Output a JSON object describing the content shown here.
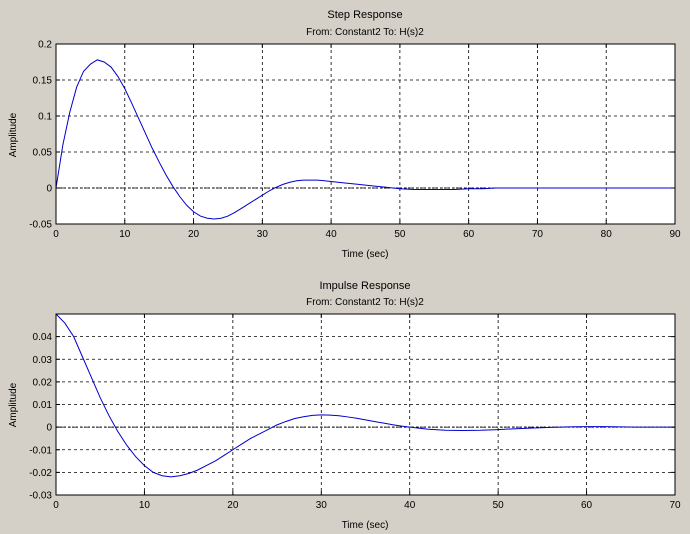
{
  "colors": {
    "background": "#d4d0c8",
    "plot_area": "#ffffff",
    "line": "#0000cc",
    "grid": "#000000",
    "zero_line": "#000000"
  },
  "chart_data": [
    {
      "type": "line",
      "title": "Step Response",
      "subtitle": "From: Constant2  To: H(s)2",
      "xlabel": "Time (sec)",
      "ylabel": "Amplitude",
      "xlim": [
        0,
        90
      ],
      "ylim": [
        -0.05,
        0.2
      ],
      "xticks": [
        0,
        10,
        20,
        30,
        40,
        50,
        60,
        70,
        80,
        90
      ],
      "xtick_labels": [
        "0",
        "10",
        "20",
        "30",
        "40",
        "50",
        "60",
        "70",
        "80",
        "90"
      ],
      "yticks": [
        -0.05,
        0,
        0.05,
        0.1,
        0.15,
        0.2
      ],
      "ytick_labels": [
        "-0.05",
        "0",
        "0.05",
        "0.1",
        "0.15",
        "0.2"
      ],
      "grid": true,
      "zero_line": true,
      "series": [
        {
          "x": [
            0,
            1,
            2,
            3,
            4,
            5,
            6,
            7,
            8,
            9,
            10,
            11,
            12,
            13,
            14,
            15,
            16,
            17,
            18,
            19,
            20,
            21,
            22,
            23,
            24,
            25,
            26,
            27,
            28,
            29,
            30,
            31,
            32,
            33,
            34,
            35,
            36,
            37,
            38,
            39,
            40,
            42,
            44,
            46,
            48,
            50,
            52,
            54,
            56,
            58,
            60,
            62,
            64,
            66,
            70,
            75,
            80,
            85,
            90
          ],
          "y": [
            0,
            0.06,
            0.105,
            0.14,
            0.162,
            0.172,
            0.178,
            0.175,
            0.168,
            0.155,
            0.138,
            0.118,
            0.097,
            0.076,
            0.055,
            0.036,
            0.018,
            0.002,
            -0.012,
            -0.024,
            -0.033,
            -0.039,
            -0.042,
            -0.043,
            -0.042,
            -0.039,
            -0.034,
            -0.028,
            -0.022,
            -0.016,
            -0.01,
            -0.004,
            0.001,
            0.005,
            0.008,
            0.01,
            0.011,
            0.011,
            0.011,
            0.01,
            0.009,
            0.007,
            0.005,
            0.003,
            0.001,
            -0.001,
            -0.002,
            -0.002,
            -0.002,
            -0.002,
            -0.001,
            -0.001,
            0,
            0,
            0,
            0,
            0,
            0,
            0
          ]
        }
      ]
    },
    {
      "type": "line",
      "title": "Impulse Response",
      "subtitle": "From: Constant2  To: H(s)2",
      "xlabel": "Time (sec)",
      "ylabel": "Amplitude",
      "xlim": [
        0,
        70
      ],
      "ylim": [
        -0.03,
        0.05
      ],
      "xticks": [
        0,
        10,
        20,
        30,
        40,
        50,
        60,
        70
      ],
      "xtick_labels": [
        "0",
        "10",
        "20",
        "30",
        "40",
        "50",
        "60",
        "70"
      ],
      "yticks": [
        -0.03,
        -0.02,
        -0.01,
        0,
        0.01,
        0.02,
        0.03,
        0.04
      ],
      "ytick_labels": [
        "-0.03",
        "-0.02",
        "-0.01",
        "0",
        "0.01",
        "0.02",
        "0.03",
        "0.04"
      ],
      "grid": true,
      "zero_line": true,
      "series": [
        {
          "x": [
            0,
            1,
            2,
            3,
            4,
            5,
            6,
            7,
            8,
            9,
            10,
            11,
            12,
            13,
            14,
            15,
            16,
            17,
            18,
            19,
            20,
            21,
            22,
            23,
            24,
            25,
            26,
            27,
            28,
            29,
            30,
            31,
            32,
            33,
            34,
            35,
            36,
            37,
            38,
            39,
            40,
            42,
            44,
            46,
            48,
            50,
            52,
            54,
            56,
            58,
            60,
            62,
            64,
            66,
            68,
            70
          ],
          "y": [
            0.05,
            0.046,
            0.04,
            0.031,
            0.022,
            0.013,
            0.005,
            -0.002,
            -0.008,
            -0.013,
            -0.017,
            -0.02,
            -0.0215,
            -0.022,
            -0.0215,
            -0.0205,
            -0.019,
            -0.017,
            -0.015,
            -0.0125,
            -0.01,
            -0.0075,
            -0.005,
            -0.003,
            -0.001,
            0.001,
            0.0025,
            0.0038,
            0.0046,
            0.0052,
            0.0054,
            0.0053,
            0.005,
            0.0045,
            0.0039,
            0.0032,
            0.0025,
            0.0018,
            0.0011,
            0.0005,
            0,
            -0.0009,
            -0.0014,
            -0.0015,
            -0.0014,
            -0.0011,
            -0.0007,
            -0.0004,
            -0.0001,
            0.0001,
            0.0002,
            0.0002,
            0.0001,
            0,
            0,
            0
          ]
        }
      ]
    }
  ]
}
